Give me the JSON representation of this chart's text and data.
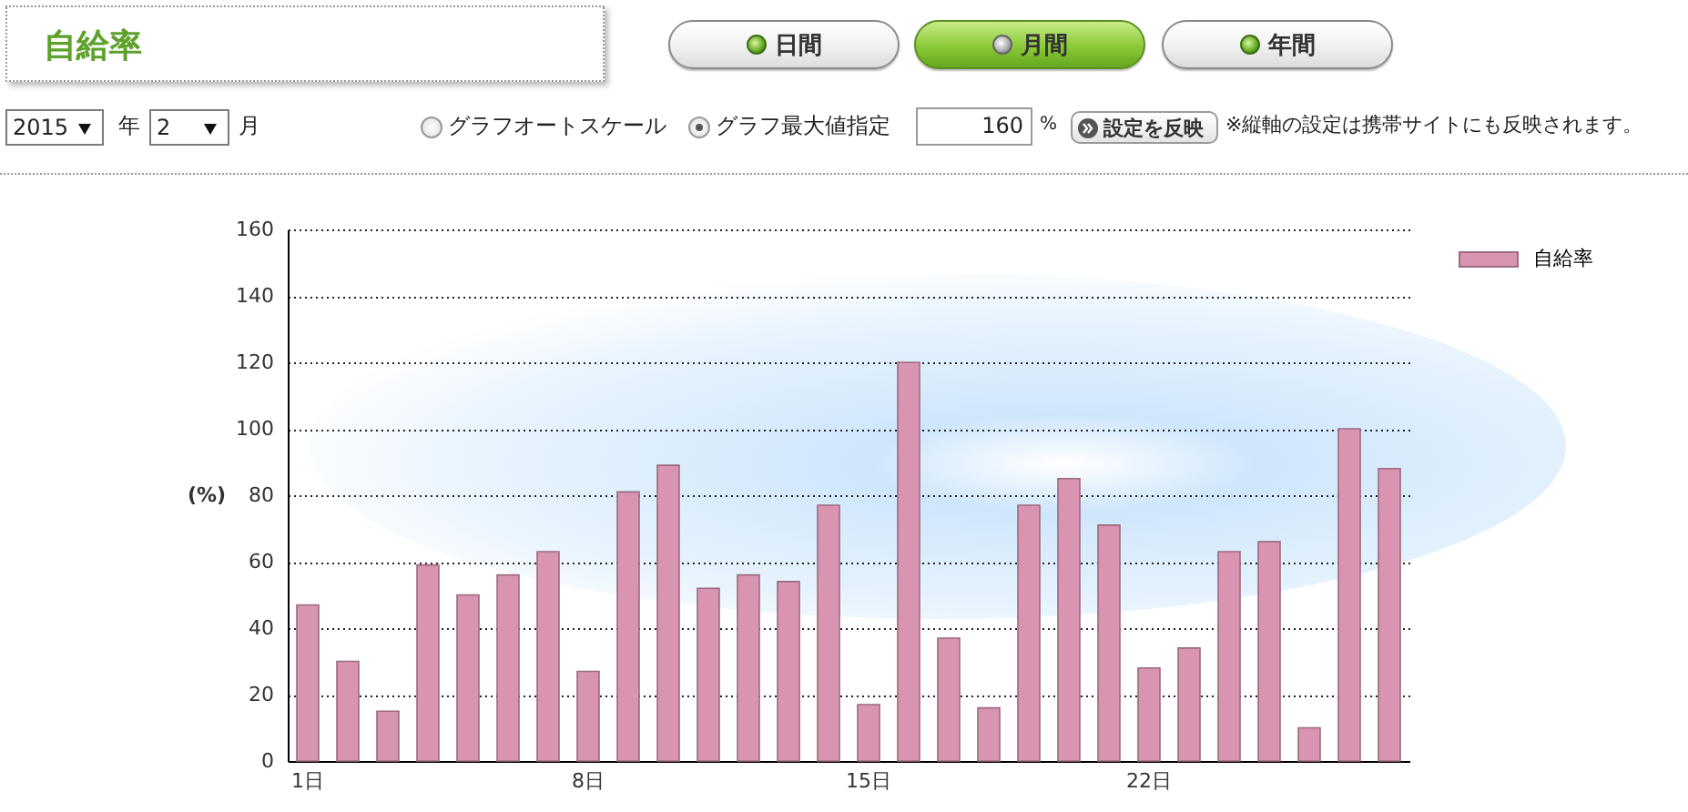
{
  "chart_data": {
    "type": "bar",
    "title": "自給率",
    "ylabel": "(%)",
    "categories": [
      "1日",
      null,
      null,
      null,
      null,
      null,
      null,
      "8日",
      null,
      null,
      null,
      null,
      null,
      null,
      "15日",
      null,
      null,
      null,
      null,
      null,
      null,
      "22日",
      null,
      null,
      null,
      null,
      null,
      null
    ],
    "series": [
      {
        "name": "自給率",
        "color": "#d894b0",
        "values": [
          47,
          30,
          15,
          59,
          50,
          56,
          63,
          27,
          81,
          89,
          52,
          56,
          54,
          77,
          17,
          120,
          37,
          16,
          77,
          85,
          71,
          28,
          34,
          63,
          66,
          10,
          100,
          88
        ]
      }
    ],
    "ylim": [
      0,
      160
    ],
    "yticks": [
      0,
      20,
      40,
      60,
      80,
      100,
      120,
      140,
      160
    ],
    "grid": "y",
    "legend": "top right",
    "annotations": [
      "日間",
      "月間",
      "年間",
      "2015",
      "年",
      "2",
      "月",
      "グラフオートスケール",
      "グラフ最大値指定",
      "160",
      "%",
      "設定を反映",
      "※縦軸の設定は携帯サイトにも反映されます。"
    ]
  }
}
